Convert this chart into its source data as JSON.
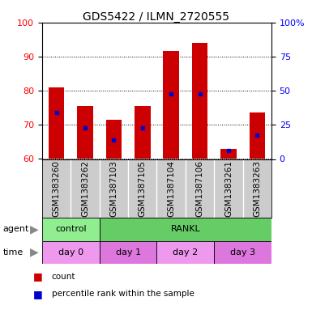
{
  "title": "GDS5422 / ILMN_2720555",
  "samples": [
    "GSM1383260",
    "GSM1383262",
    "GSM1387103",
    "GSM1387105",
    "GSM1387104",
    "GSM1387106",
    "GSM1383261",
    "GSM1383263"
  ],
  "count_values": [
    81,
    75.5,
    71.5,
    75.5,
    91.5,
    94,
    63,
    73.5
  ],
  "count_bottom": [
    60,
    60,
    60,
    60,
    60,
    60,
    60,
    60
  ],
  "percentile_values": [
    73.5,
    69,
    65.5,
    69,
    79,
    79,
    62.5,
    67
  ],
  "ylim": [
    60,
    100
  ],
  "y2lim": [
    0,
    100
  ],
  "yticks": [
    60,
    70,
    80,
    90,
    100
  ],
  "y2ticks": [
    0,
    25,
    50,
    75,
    100
  ],
  "bar_color": "#cc0000",
  "percentile_color": "#0000cc",
  "agent_groups": [
    {
      "label": "control",
      "start": 0,
      "end": 2,
      "color": "#90ee90"
    },
    {
      "label": "RANKL",
      "start": 2,
      "end": 8,
      "color": "#66cc66"
    }
  ],
  "time_groups": [
    {
      "label": "day 0",
      "start": 0,
      "end": 2,
      "color": "#ee99ee"
    },
    {
      "label": "day 1",
      "start": 2,
      "end": 4,
      "color": "#dd77dd"
    },
    {
      "label": "day 2",
      "start": 4,
      "end": 6,
      "color": "#ee99ee"
    },
    {
      "label": "day 3",
      "start": 6,
      "end": 8,
      "color": "#dd77dd"
    }
  ],
  "bar_width": 0.55,
  "sample_bg_color": "#cccccc",
  "bg_color": "#ffffff",
  "plot_bg_color": "#ffffff",
  "label_fontsize": 7.5,
  "title_fontsize": 10,
  "tick_fontsize": 8,
  "annot_fontsize": 8,
  "legend_items": [
    "count",
    "percentile rank within the sample"
  ],
  "legend_colors": [
    "#cc0000",
    "#0000cc"
  ]
}
